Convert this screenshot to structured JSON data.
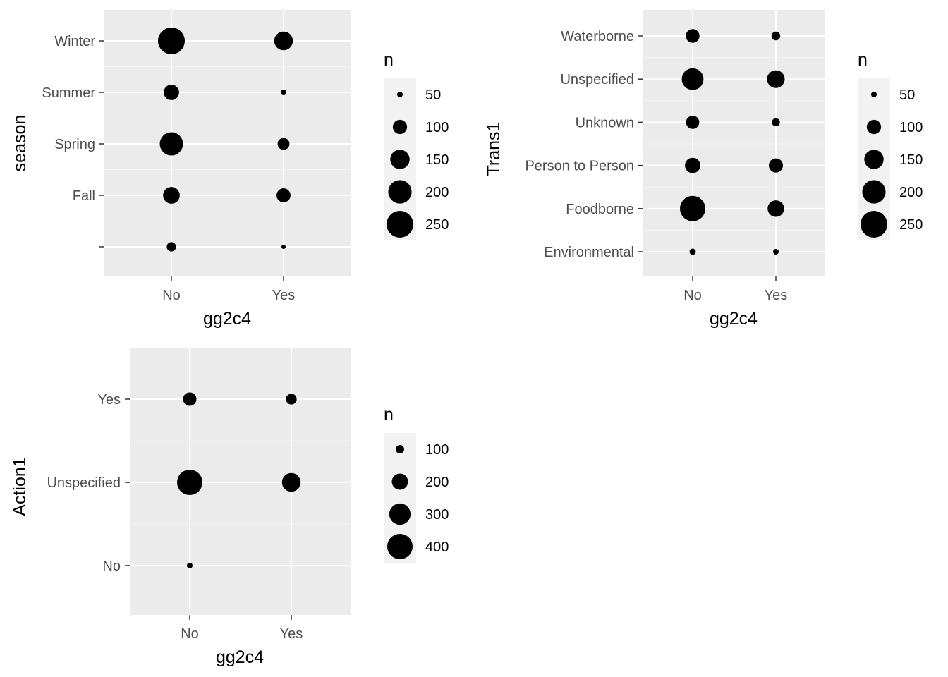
{
  "chart_data": [
    {
      "type": "scatter",
      "title": "",
      "xlabel": "gg2c4",
      "ylabel": "season",
      "x_categories": [
        "No",
        "Yes"
      ],
      "y_categories": [
        "",
        "Fall",
        "Spring",
        "Summer",
        "Winter"
      ],
      "points": [
        {
          "x": "No",
          "y": "Winter",
          "n": 265
        },
        {
          "x": "Yes",
          "y": "Winter",
          "n": 130
        },
        {
          "x": "No",
          "y": "Summer",
          "n": 90
        },
        {
          "x": "Yes",
          "y": "Summer",
          "n": 15
        },
        {
          "x": "No",
          "y": "Spring",
          "n": 200
        },
        {
          "x": "Yes",
          "y": "Spring",
          "n": 55
        },
        {
          "x": "No",
          "y": "Fall",
          "n": 105
        },
        {
          "x": "Yes",
          "y": "Fall",
          "n": 75
        },
        {
          "x": "No",
          "y": "",
          "n": 35
        },
        {
          "x": "Yes",
          "y": "",
          "n": 10
        }
      ],
      "legend": {
        "title": "n",
        "breaks": [
          50,
          100,
          150,
          200,
          250
        ],
        "labels": [
          "50",
          "100",
          "150",
          "200",
          "250"
        ],
        "position": "right"
      },
      "grid": true,
      "point_color": "#000000",
      "panel_color": "#ebebeb"
    },
    {
      "type": "scatter",
      "title": "",
      "xlabel": "gg2c4",
      "ylabel": "Trans1",
      "x_categories": [
        "No",
        "Yes"
      ],
      "y_categories": [
        "Environmental",
        "Foodborne",
        "Person to Person",
        "Unknown",
        "Unspecified",
        "Waterborne"
      ],
      "points": [
        {
          "x": "No",
          "y": "Waterborne",
          "n": 75
        },
        {
          "x": "Yes",
          "y": "Waterborne",
          "n": 30
        },
        {
          "x": "No",
          "y": "Unspecified",
          "n": 190
        },
        {
          "x": "Yes",
          "y": "Unspecified",
          "n": 125
        },
        {
          "x": "No",
          "y": "Unknown",
          "n": 70
        },
        {
          "x": "Yes",
          "y": "Unknown",
          "n": 25
        },
        {
          "x": "No",
          "y": "Person to Person",
          "n": 95
        },
        {
          "x": "Yes",
          "y": "Person to Person",
          "n": 80
        },
        {
          "x": "No",
          "y": "Foodborne",
          "n": 260
        },
        {
          "x": "Yes",
          "y": "Foodborne",
          "n": 110
        },
        {
          "x": "No",
          "y": "Environmental",
          "n": 15
        },
        {
          "x": "Yes",
          "y": "Environmental",
          "n": 12
        }
      ],
      "legend": {
        "title": "n",
        "breaks": [
          50,
          100,
          150,
          200,
          250
        ],
        "labels": [
          "50",
          "100",
          "150",
          "200",
          "250"
        ],
        "position": "right"
      },
      "grid": true,
      "point_color": "#000000",
      "panel_color": "#ebebeb"
    },
    {
      "type": "scatter",
      "title": "",
      "xlabel": "gg2c4",
      "ylabel": "Action1",
      "x_categories": [
        "No",
        "Yes"
      ],
      "y_categories": [
        "No",
        "Unspecified",
        "Yes"
      ],
      "points": [
        {
          "x": "No",
          "y": "Yes",
          "n": 120
        },
        {
          "x": "Yes",
          "y": "Yes",
          "n": 75
        },
        {
          "x": "No",
          "y": "Unspecified",
          "n": 450
        },
        {
          "x": "Yes",
          "y": "Unspecified",
          "n": 240
        },
        {
          "x": "No",
          "y": "No",
          "n": 15
        }
      ],
      "legend": {
        "title": "n",
        "breaks": [
          100,
          200,
          300,
          400
        ],
        "labels": [
          "100",
          "200",
          "300",
          "400"
        ],
        "position": "right"
      },
      "grid": true,
      "point_color": "#000000",
      "panel_color": "#ebebeb"
    }
  ]
}
